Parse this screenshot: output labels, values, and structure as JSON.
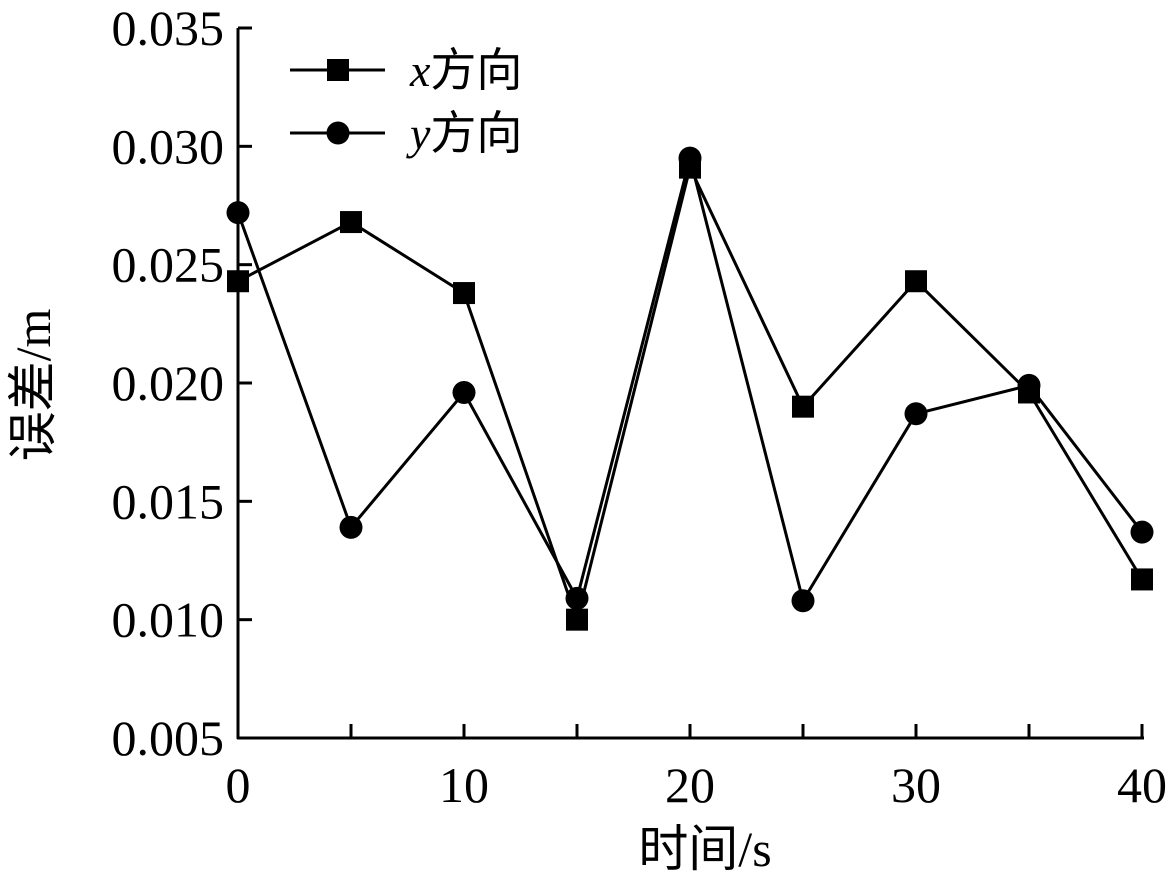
{
  "chart_data": {
    "type": "line",
    "x": [
      0,
      5,
      10,
      15,
      20,
      25,
      30,
      35,
      40
    ],
    "series": [
      {
        "name_var": "x",
        "name_suffix": "方向",
        "marker": "square",
        "values": [
          0.0243,
          0.0268,
          0.0238,
          0.01,
          0.0291,
          0.019,
          0.0243,
          0.0196,
          0.0117
        ]
      },
      {
        "name_var": "y",
        "name_suffix": "方向",
        "marker": "circle",
        "values": [
          0.0272,
          0.0139,
          0.0196,
          0.0109,
          0.0295,
          0.0108,
          0.0187,
          0.0199,
          0.0137
        ]
      }
    ],
    "xlabel": "时间/s",
    "ylabel": "误差/m",
    "xlim": [
      0,
      40
    ],
    "ylim": [
      0.005,
      0.035
    ],
    "xticks": [
      "0",
      "10",
      "20",
      "30",
      "40"
    ],
    "yticks": [
      "0.005",
      "0.010",
      "0.015",
      "0.020",
      "0.025",
      "0.030",
      "0.035"
    ],
    "legend_position": "top-left",
    "grid": false,
    "line_color": "#000000"
  }
}
